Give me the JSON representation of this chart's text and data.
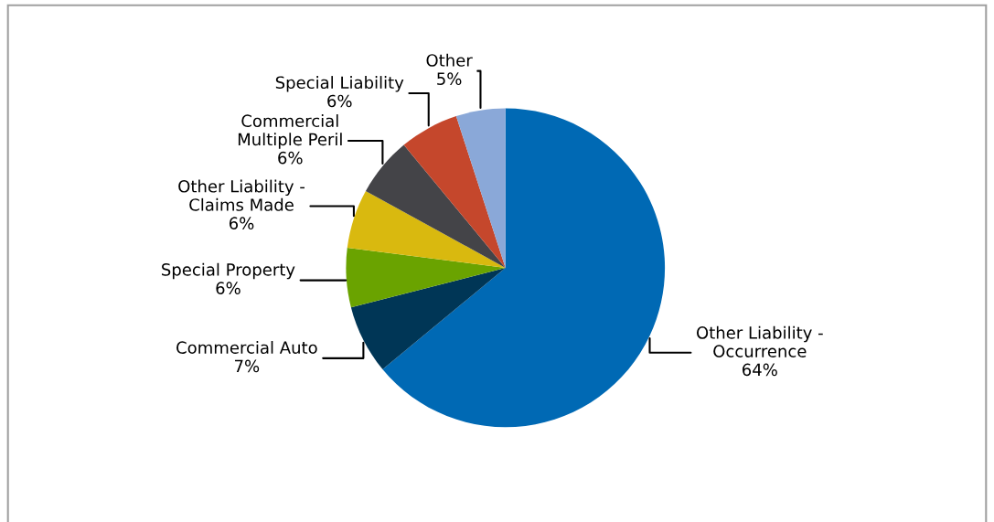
{
  "chart_data": {
    "type": "pie",
    "categories": [
      "Other Liability - Occurrence",
      "Commercial Auto",
      "Special Property",
      "Other Liability - Claims Made",
      "Commercial Multiple Peril",
      "Special Liability",
      "Other"
    ],
    "values": [
      64,
      7,
      6,
      6,
      6,
      6,
      5
    ],
    "value_labels": [
      "64%",
      "7%",
      "6%",
      "6%",
      "6%",
      "6%",
      "5%"
    ],
    "colors": [
      "#0069b4",
      "#003656",
      "#6aa300",
      "#d9b90f",
      "#444448",
      "#c5472c",
      "#8aa8d8"
    ],
    "legend": false
  }
}
